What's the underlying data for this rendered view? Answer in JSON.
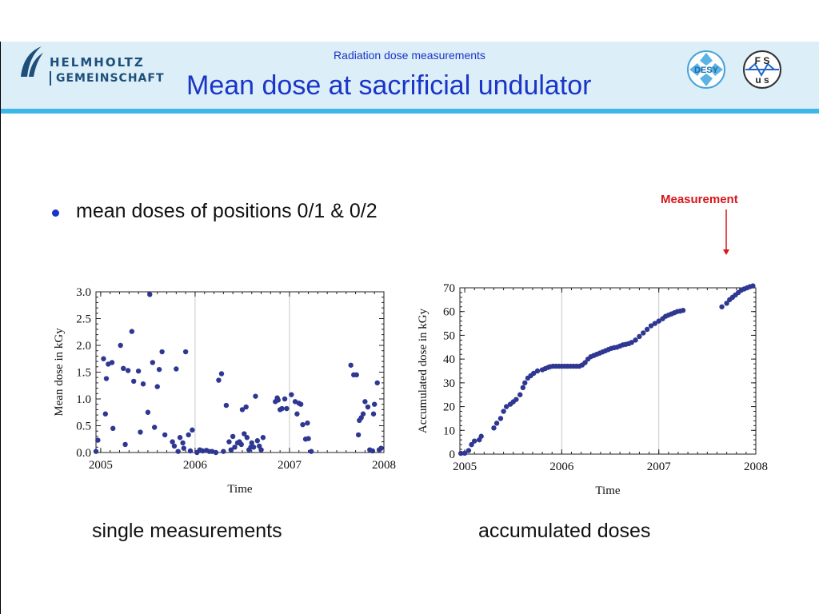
{
  "header": {
    "org_line1": "HELMHOLTZ",
    "org_line2": "GEMEINSCHAFT",
    "subtitle": "Radiation dose measurements",
    "title": "Mean dose at sacrificial undulator",
    "badge_desy": "DESY",
    "badge_fs": "F S",
    "badge_us": "u s",
    "accent_color": "#3bb8e8",
    "title_color": "#1a35c9"
  },
  "bullet": {
    "text": "mean doses of positions 0/1 & 0/2"
  },
  "annotation": {
    "label": "Measurement",
    "color": "#d8161b"
  },
  "captions": {
    "left": "single measurements",
    "right": "accumulated doses"
  },
  "chart_data": [
    {
      "type": "scatter",
      "xlabel": "Time",
      "ylabel": "Mean dose in kGy",
      "xlim": [
        2004.95,
        2008.0
      ],
      "ylim": [
        0,
        3.0
      ],
      "x_ticks": [
        2005,
        2006,
        2007,
        2008
      ],
      "x_tick_labels": [
        "2005",
        "2006",
        "2007",
        "2008"
      ],
      "y_ticks": [
        0,
        0.5,
        1,
        1.5,
        2,
        2.5,
        3
      ],
      "y_tick_labels": [
        "0.0",
        "0.5",
        "1.0",
        "1.5",
        "2.0",
        "2.5",
        "3.0"
      ],
      "vertical_gridlines": [
        2006,
        2007
      ],
      "marker_color": "#2e3792",
      "series": [
        {
          "x": [
            2004.95,
            2004.97,
            2005.03,
            2005.05,
            2005.06,
            2005.08,
            2005.12,
            2005.13,
            2005.21,
            2005.24,
            2005.26,
            2005.29,
            2005.33,
            2005.35,
            2005.4,
            2005.42,
            2005.45,
            2005.5,
            2005.52,
            2005.55,
            2005.57,
            2005.6,
            2005.62,
            2005.65,
            2005.68,
            2005.76,
            2005.78,
            2005.8,
            2005.82,
            2005.84,
            2005.87,
            2005.88,
            2005.9,
            2005.93,
            2005.95,
            2005.97,
            2006.02,
            2006.05,
            2006.08,
            2006.12,
            2006.15,
            2006.18,
            2006.22,
            2006.25,
            2006.28,
            2006.3,
            2006.33,
            2006.36,
            2006.38,
            2006.4,
            2006.42,
            2006.45,
            2006.47,
            2006.49,
            2006.5,
            2006.52,
            2006.54,
            2006.55,
            2006.57,
            2006.59,
            2006.6,
            2006.62,
            2006.64,
            2006.66,
            2006.68,
            2006.7,
            2006.72,
            2006.85,
            2006.87,
            2006.88,
            2006.9,
            2006.92,
            2006.95,
            2006.97,
            2007.02,
            2007.06,
            2007.08,
            2007.1,
            2007.12,
            2007.14,
            2007.17,
            2007.19,
            2007.2,
            2007.23,
            2007.65,
            2007.68,
            2007.71,
            2007.73,
            2007.74,
            2007.76,
            2007.78,
            2007.8,
            2007.83,
            2007.85,
            2007.88,
            2007.89,
            2007.9,
            2007.93,
            2007.95,
            2007.97
          ],
          "y": [
            0.02,
            0.23,
            1.75,
            0.72,
            1.38,
            1.65,
            1.68,
            0.45,
            2.0,
            1.57,
            0.15,
            1.53,
            2.26,
            1.33,
            1.52,
            0.38,
            1.28,
            0.75,
            2.95,
            1.68,
            0.47,
            1.23,
            1.55,
            1.88,
            0.33,
            0.2,
            0.12,
            1.56,
            0.02,
            0.28,
            0.18,
            0.08,
            1.88,
            0.33,
            0.03,
            0.42,
            0.0,
            0.05,
            0.03,
            0.04,
            0.02,
            0.02,
            0.0,
            1.35,
            1.47,
            0.02,
            0.88,
            0.2,
            0.05,
            0.3,
            0.1,
            0.18,
            0.2,
            0.15,
            0.8,
            0.35,
            0.85,
            0.28,
            0.05,
            0.1,
            0.18,
            0.1,
            1.05,
            0.22,
            0.12,
            0.05,
            0.28,
            0.95,
            1.02,
            0.98,
            0.8,
            0.82,
            1.0,
            0.82,
            1.08,
            0.95,
            0.72,
            0.92,
            0.9,
            0.52,
            0.25,
            0.55,
            0.26,
            0.02,
            1.63,
            1.45,
            1.45,
            0.33,
            0.6,
            0.65,
            0.72,
            0.95,
            0.85,
            0.05,
            0.03,
            0.72,
            0.9,
            1.3,
            0.05,
            0.08
          ]
        }
      ]
    },
    {
      "type": "scatter",
      "xlabel": "Time",
      "ylabel": "Accumulated dose in kGy",
      "xlim": [
        2004.95,
        2008.0
      ],
      "ylim": [
        0,
        70
      ],
      "x_ticks": [
        2005,
        2006,
        2007,
        2008
      ],
      "x_tick_labels": [
        "2005",
        "2006",
        "2007",
        "2008"
      ],
      "y_ticks": [
        0,
        10,
        20,
        30,
        40,
        50,
        60,
        70
      ],
      "y_tick_labels": [
        "0",
        "10",
        "20",
        "30",
        "40",
        "50",
        "60",
        "70"
      ],
      "vertical_gridlines": [
        2006,
        2007
      ],
      "marker_color": "#2e3792",
      "series": [
        {
          "x": [
            2004.96,
            2005.0,
            2005.04,
            2005.07,
            2005.1,
            2005.15,
            2005.17,
            2005.3,
            2005.33,
            2005.37,
            2005.4,
            2005.43,
            2005.47,
            2005.5,
            2005.53,
            2005.57,
            2005.6,
            2005.62,
            2005.65,
            2005.68,
            2005.71,
            2005.75,
            2005.8,
            2005.83,
            2005.86,
            2005.88,
            2005.91,
            2005.94,
            2005.97,
            2006.0,
            2006.03,
            2006.06,
            2006.09,
            2006.12,
            2006.15,
            2006.18,
            2006.21,
            2006.24,
            2006.27,
            2006.3,
            2006.33,
            2006.36,
            2006.39,
            2006.42,
            2006.45,
            2006.48,
            2006.51,
            2006.54,
            2006.57,
            2006.6,
            2006.63,
            2006.66,
            2006.69,
            2006.72,
            2006.76,
            2006.8,
            2006.84,
            2006.88,
            2006.92,
            2006.96,
            2007.0,
            2007.04,
            2007.07,
            2007.1,
            2007.13,
            2007.16,
            2007.19,
            2007.22,
            2007.25,
            2007.65,
            2007.7,
            2007.73,
            2007.76,
            2007.79,
            2007.82,
            2007.85,
            2007.88,
            2007.91,
            2007.94,
            2007.97
          ],
          "y": [
            0.3,
            0.4,
            1.5,
            4.0,
            5.5,
            6.0,
            7.5,
            11.0,
            13.0,
            15.0,
            18.0,
            20.0,
            21.0,
            22.0,
            23.0,
            25.0,
            28.0,
            30.0,
            32.0,
            33.0,
            34.0,
            35.0,
            35.5,
            36.0,
            36.5,
            36.8,
            37.0,
            37.0,
            37.0,
            37.0,
            37.0,
            37.0,
            37.0,
            37.0,
            37.0,
            37.0,
            37.5,
            38.5,
            40.0,
            41.0,
            41.5,
            42.0,
            42.5,
            43.0,
            43.5,
            44.0,
            44.5,
            44.8,
            45.0,
            45.5,
            46.0,
            46.2,
            46.5,
            47.0,
            48.0,
            49.5,
            51.0,
            52.5,
            54.0,
            55.0,
            56.0,
            57.0,
            58.0,
            58.5,
            59.0,
            59.5,
            60.0,
            60.2,
            60.5,
            62.0,
            63.5,
            65.0,
            66.0,
            67.0,
            68.0,
            69.0,
            69.5,
            70.0,
            70.5,
            70.8
          ]
        }
      ]
    }
  ]
}
